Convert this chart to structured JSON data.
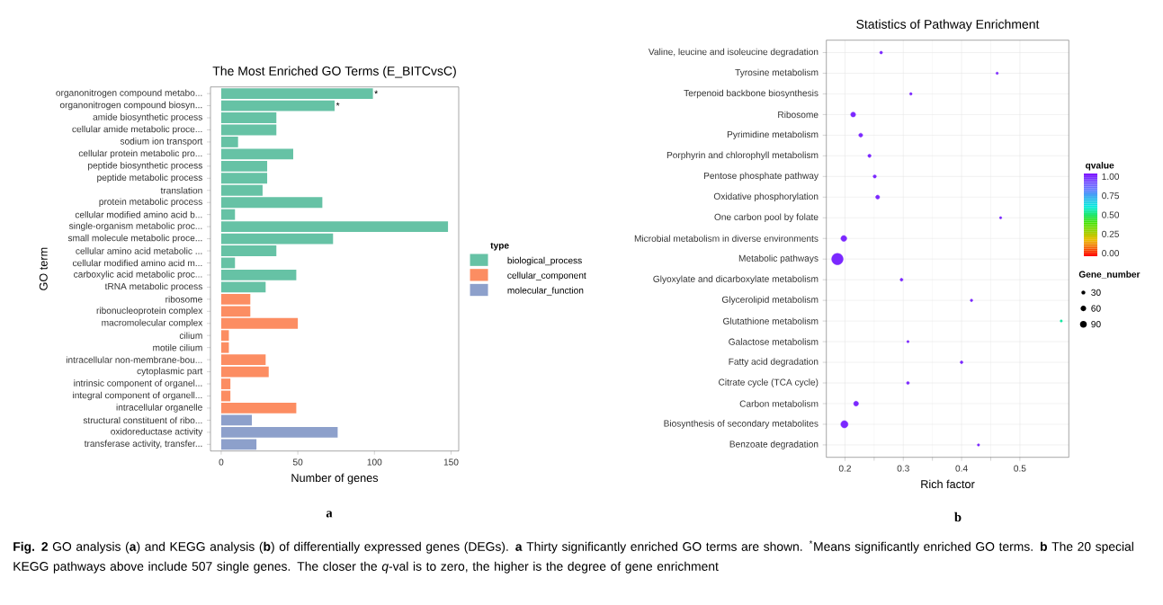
{
  "chart_data": [
    {
      "type": "bar",
      "orientation": "horizontal",
      "title": "The Most Enriched GO Terms (E_BITCvsC)",
      "xlabel": "Number of genes",
      "ylabel": "GO term",
      "legend_title": "type",
      "legend": "right",
      "categories": [
        "organonitrogen compound metabo...",
        "organonitrogen compound biosyn...",
        "amide biosynthetic process",
        "cellular amide metabolic proce...",
        "sodium ion transport",
        "cellular protein metabolic pro...",
        "peptide biosynthetic process",
        "peptide metabolic process",
        "translation",
        "protein metabolic process",
        "cellular modified amino acid b...",
        "single-organism metabolic proc...",
        "small molecule metabolic proce...",
        "cellular amino acid metabolic ...",
        "cellular modified amino acid m...",
        "carboxylic acid metabolic proc...",
        "tRNA metabolic process",
        "ribosome",
        "ribonucleoprotein complex",
        "macromolecular complex",
        "cilium",
        "motile cilium",
        "intracellular non-membrane-bou...",
        "cytoplasmic part",
        "intrinsic component of organel...",
        "integral component of organell...",
        "intracellular organelle",
        "structural constituent of ribo...",
        "oxidoreductase activity",
        "transferase activity, transfer..."
      ],
      "series": [
        {
          "name": "biological_process",
          "color": "#66c2a5",
          "values": [
            99,
            74,
            36,
            36,
            11,
            47,
            30,
            30,
            27,
            66,
            9,
            148,
            73,
            36,
            9,
            49,
            29,
            null,
            null,
            null,
            null,
            null,
            null,
            null,
            null,
            null,
            null,
            null,
            null,
            null
          ]
        },
        {
          "name": "cellular_component",
          "color": "#fc8d62",
          "values": [
            null,
            null,
            null,
            null,
            null,
            null,
            null,
            null,
            null,
            null,
            null,
            null,
            null,
            null,
            null,
            null,
            null,
            19,
            19,
            50,
            5,
            5,
            29,
            31,
            6,
            6,
            49,
            null,
            null,
            null
          ]
        },
        {
          "name": "molecular_function",
          "color": "#8da0cb",
          "values": [
            null,
            null,
            null,
            null,
            null,
            null,
            null,
            null,
            null,
            null,
            null,
            null,
            null,
            null,
            null,
            null,
            null,
            null,
            null,
            null,
            null,
            null,
            null,
            null,
            null,
            null,
            null,
            20,
            76,
            23
          ]
        }
      ],
      "xlim": [
        -7,
        155
      ],
      "xticks": [
        0,
        50,
        100,
        150
      ],
      "annotations": [
        {
          "text": "*",
          "x": 99,
          "y": "organonitrogen compound metabo..."
        },
        {
          "text": "*",
          "x": 74,
          "y": "organonitrogen compound biosyn..."
        },
        "a",
        "**Fig. 2** GO analysis (**a**) and KEGG analysis (**b**) of differentially expressed genes (DEGs). **a** Thirty significantly enriched GO terms are shown. $^{*}$Means significantly enriched GO terms. **b** The 20 special KEGG pathways above include 507 single genes. The closer the *q*-val is to zero, the higher is the degree of gene enrichment"
      ]
    },
    {
      "type": "bubble",
      "orientation": "horizontal",
      "title": "Statistics of Pathway Enrichment",
      "xlabel": "Rich factor",
      "clabel": "qvalue",
      "legend_title": "Gene_number",
      "grid": true,
      "categories": [
        "Valine, leucine and isoleucine degradation",
        "Tyrosine metabolism",
        "Terpenoid backbone biosynthesis",
        "Ribosome",
        "Pyrimidine metabolism",
        "Porphyrin and chlorophyll metabolism",
        "Pentose phosphate pathway",
        "Oxidative phosphorylation",
        "One carbon pool by folate",
        "Microbial metabolism in diverse environments",
        "Metabolic pathways",
        "Glyoxylate and dicarboxylate metabolism",
        "Glycerolipid metabolism",
        "Glutathione metabolism",
        "Galactose metabolism",
        "Fatty acid degradation",
        "Citrate cycle (TCA cycle)",
        "Carbon metabolism",
        "Biosynthesis of secondary metabolites",
        "Benzoate degradation"
      ],
      "values": [
        0.262,
        0.461,
        0.313,
        0.214,
        0.227,
        0.242,
        0.251,
        0.256,
        0.467,
        0.198,
        0.187,
        0.297,
        0.417,
        0.571,
        0.308,
        0.4,
        0.308,
        0.219,
        0.199,
        0.429
      ],
      "sizes": [
        15,
        10,
        12,
        45,
        30,
        20,
        20,
        30,
        10,
        65,
        250,
        15,
        12,
        10,
        10,
        15,
        15,
        45,
        100,
        10
      ],
      "cvalues": [
        1,
        1,
        1,
        1,
        1,
        1,
        1,
        1,
        1,
        1,
        1,
        1,
        1,
        0.55,
        1,
        1,
        1,
        1,
        1,
        1
      ],
      "size_legend": [
        30,
        60,
        90
      ],
      "clim": [
        -0.04,
        1.04
      ],
      "cticks": [
        {
          "value": 0,
          "label": "0.00"
        },
        {
          "value": 0.25,
          "label": "0.25"
        },
        {
          "value": 0.5,
          "label": "0.50"
        },
        {
          "value": 0.75,
          "label": "0.75"
        },
        {
          "value": 1,
          "label": "1.00"
        }
      ],
      "xlim": [
        0.168,
        0.584
      ],
      "xticks": [
        0.2,
        0.3,
        0.4,
        0.5
      ],
      "annotations": [
        "b"
      ]
    }
  ]
}
